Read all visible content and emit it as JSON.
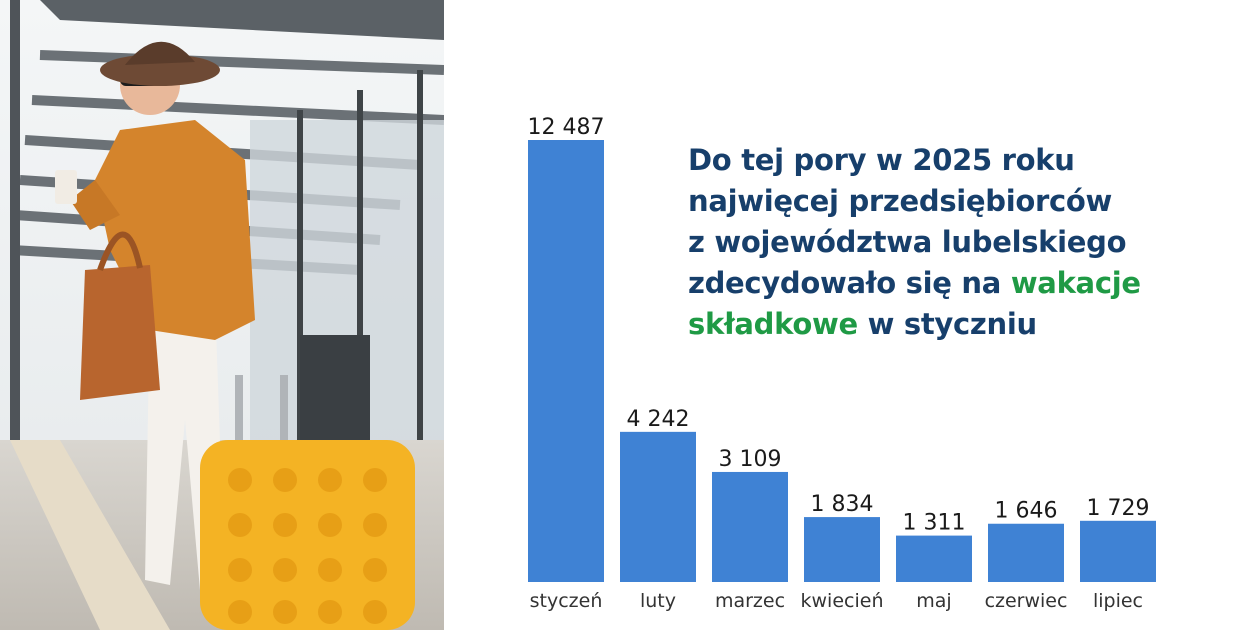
{
  "headline": {
    "line1": "Do tej pory w 2025 roku",
    "line2": "najwięcej przedsiębiorców",
    "line3": "z województwa lubelskiego",
    "line4_a": "zdecydowało się na ",
    "line4_b": "wakacje",
    "line5_a": "składkowe",
    "line5_b": " w styczniu"
  },
  "colors": {
    "headline": "#173f6b",
    "highlight": "#1f9a45",
    "bar": "#3f82d4"
  },
  "photo": {
    "description_icon": "traveler-photo"
  },
  "chart_data": {
    "type": "bar",
    "categories": [
      "styczeń",
      "luty",
      "marzec",
      "kwiecień",
      "maj",
      "czerwiec",
      "lipiec"
    ],
    "values": [
      12487,
      4242,
      3109,
      1834,
      1311,
      1646,
      1729
    ],
    "value_labels": [
      "12 487",
      "4 242",
      "3 109",
      "1 834",
      "1 311",
      "1 646",
      "1 729"
    ],
    "ylim": [
      0,
      12487
    ],
    "grid": false,
    "legend": "none"
  }
}
